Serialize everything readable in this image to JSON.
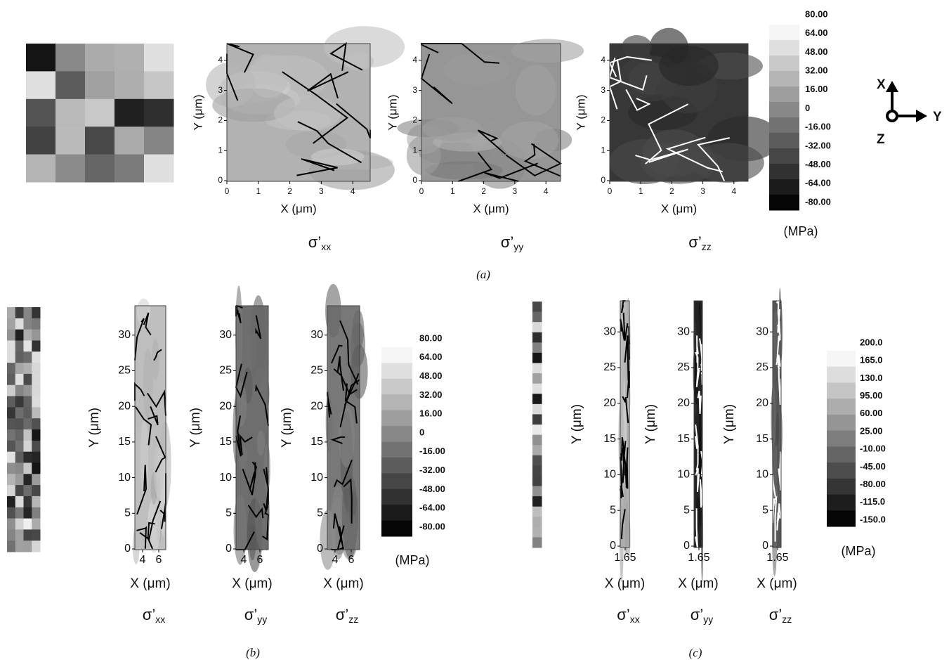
{
  "panels": [
    {
      "caption": "(a)",
      "maps": [
        {
          "x_label": "X (μm)",
          "y_label": "Y (μm)",
          "x_ticks": [
            "0",
            "1",
            "2",
            "3",
            "4"
          ],
          "y_ticks": [
            "0",
            "1",
            "2",
            "3",
            "4"
          ],
          "stress": "σ’",
          "component": "xx"
        },
        {
          "x_label": "X (μm)",
          "y_label": "Y (μm)",
          "x_ticks": [
            "0",
            "1",
            "2",
            "3",
            "4"
          ],
          "y_ticks": [
            "0",
            "1",
            "2",
            "3",
            "4"
          ],
          "stress": "σ’",
          "component": "yy"
        },
        {
          "x_label": "X (μm)",
          "y_label": "Y (μm)",
          "x_ticks": [
            "0",
            "1",
            "2",
            "3",
            "4"
          ],
          "y_ticks": [
            "0",
            "1",
            "2",
            "3",
            "4"
          ],
          "stress": "σ’",
          "component": "zz"
        }
      ],
      "colorbar": {
        "labels": [
          "80.00",
          "64.00",
          "48.00",
          "32.00",
          "16.00",
          "0",
          "-16.00",
          "-32.00",
          "-48.00",
          "-64.00",
          "-80.00"
        ],
        "unit": "(MPa)"
      }
    },
    {
      "caption": "(b)",
      "maps": [
        {
          "x_label": "X (μm)",
          "y_label": "Y (μm)",
          "x_ticks": [
            "4",
            "6"
          ],
          "y_ticks": [
            "0",
            "5",
            "10",
            "15",
            "20",
            "25",
            "30"
          ],
          "stress": "σ’",
          "component": "xx"
        },
        {
          "x_label": "X (μm)",
          "y_label": "Y (μm)",
          "x_ticks": [
            "4",
            "6"
          ],
          "y_ticks": [
            "0",
            "5",
            "10",
            "15",
            "20",
            "25",
            "30"
          ],
          "stress": "σ’",
          "component": "yy"
        },
        {
          "x_label": "X (μm)",
          "y_label": "Y (μm)",
          "x_ticks": [
            "4",
            "6"
          ],
          "y_ticks": [
            "0",
            "5",
            "10",
            "15",
            "20",
            "25",
            "30"
          ],
          "stress": "σ’",
          "component": "zz"
        }
      ],
      "colorbar": {
        "labels": [
          "80.00",
          "64.00",
          "48.00",
          "32.00",
          "16.00",
          "0",
          "-16.00",
          "-32.00",
          "-48.00",
          "-64.00",
          "-80.00"
        ],
        "unit": "(MPa)"
      }
    },
    {
      "caption": "(c)",
      "maps": [
        {
          "x_label": "X (μm)",
          "y_label": "Y (μm)",
          "x_ticks": [
            "1.65"
          ],
          "y_ticks": [
            "0",
            "5",
            "10",
            "15",
            "20",
            "25",
            "30"
          ],
          "stress": "σ’",
          "component": "xx"
        },
        {
          "x_label": "X (μm)",
          "y_label": "Y (μm)",
          "x_ticks": [
            "1.65"
          ],
          "y_ticks": [
            "0",
            "5",
            "10",
            "15",
            "20",
            "25",
            "30"
          ],
          "stress": "σ’",
          "component": "yy"
        },
        {
          "x_label": "X (μm)",
          "y_label": "Y (μm)",
          "x_ticks": [
            "1.65"
          ],
          "y_ticks": [
            "0",
            "5",
            "10",
            "15",
            "20",
            "25",
            "30"
          ],
          "stress": "σ’",
          "component": "zz"
        }
      ],
      "colorbar": {
        "labels": [
          "200.0",
          "165.0",
          "130.0",
          "95.00",
          "60.00",
          "25.00",
          "-10.00",
          "-45.00",
          "-80.00",
          "-115.0",
          "-150.0"
        ],
        "unit": "(MPa)"
      }
    }
  ],
  "axes_triad": {
    "x": "X",
    "y": "Y",
    "z": "Z"
  }
}
